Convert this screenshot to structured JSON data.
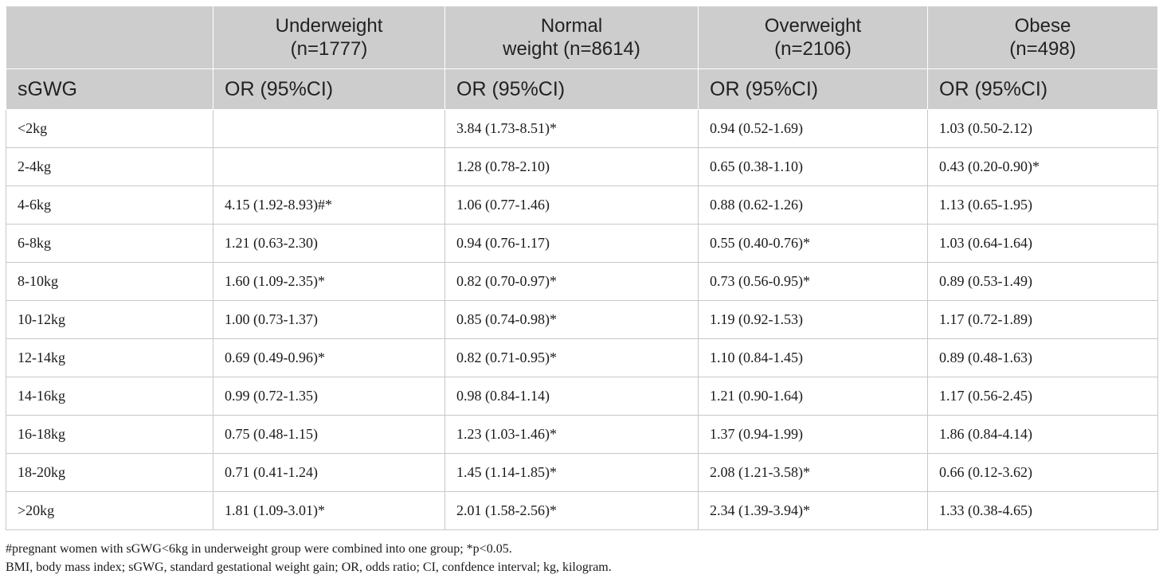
{
  "table": {
    "headers": {
      "groups": [
        "",
        "Underweight\n(n=1777)",
        "Normal\nweight (n=8614)",
        "Overweight\n(n=2106)",
        "Obese\n(n=498)"
      ],
      "sub": [
        "sGWG",
        "OR (95%CI)",
        "OR (95%CI)",
        "OR (95%CI)",
        "OR (95%CI)"
      ]
    },
    "rows": [
      [
        "<2kg",
        "",
        "3.84 (1.73-8.51)*",
        "0.94 (0.52-1.69)",
        "1.03 (0.50-2.12)"
      ],
      [
        "2-4kg",
        "",
        "1.28 (0.78-2.10)",
        "0.65 (0.38-1.10)",
        "0.43 (0.20-0.90)*"
      ],
      [
        "4-6kg",
        "4.15 (1.92-8.93)#*",
        "1.06 (0.77-1.46)",
        "0.88 (0.62-1.26)",
        "1.13 (0.65-1.95)"
      ],
      [
        "6-8kg",
        "1.21 (0.63-2.30)",
        "0.94 (0.76-1.17)",
        "0.55 (0.40-0.76)*",
        "1.03 (0.64-1.64)"
      ],
      [
        "8-10kg",
        "1.60 (1.09-2.35)*",
        "0.82 (0.70-0.97)*",
        "0.73 (0.56-0.95)*",
        "0.89 (0.53-1.49)"
      ],
      [
        "10-12kg",
        "1.00 (0.73-1.37)",
        "0.85 (0.74-0.98)*",
        "1.19 (0.92-1.53)",
        "1.17 (0.72-1.89)"
      ],
      [
        "12-14kg",
        "0.69 (0.49-0.96)*",
        "0.82 (0.71-0.95)*",
        "1.10 (0.84-1.45)",
        "0.89 (0.48-1.63)"
      ],
      [
        "14-16kg",
        "0.99 (0.72-1.35)",
        "0.98 (0.84-1.14)",
        "1.21 (0.90-1.64)",
        "1.17 (0.56-2.45)"
      ],
      [
        "16-18kg",
        "0.75 (0.48-1.15)",
        "1.23 (1.03-1.46)*",
        "1.37 (0.94-1.99)",
        "1.86 (0.84-4.14)"
      ],
      [
        "18-20kg",
        "0.71 (0.41-1.24)",
        "1.45 (1.14-1.85)*",
        "2.08 (1.21-3.58)*",
        "0.66 (0.12-3.62)"
      ],
      [
        ">20kg",
        "1.81 (1.09-3.01)*",
        "2.01 (1.58-2.56)*",
        "2.34 (1.39-3.94)*",
        "1.33 (0.38-4.65)"
      ]
    ]
  },
  "footnotes": [
    "#pregnant women with sGWG<6kg in underweight group were combined into one group; *p<0.05.",
    "BMI, body mass index; sGWG, standard gestational weight gain; OR, odds ratio; CI, confdence interval; kg, kilogram."
  ]
}
